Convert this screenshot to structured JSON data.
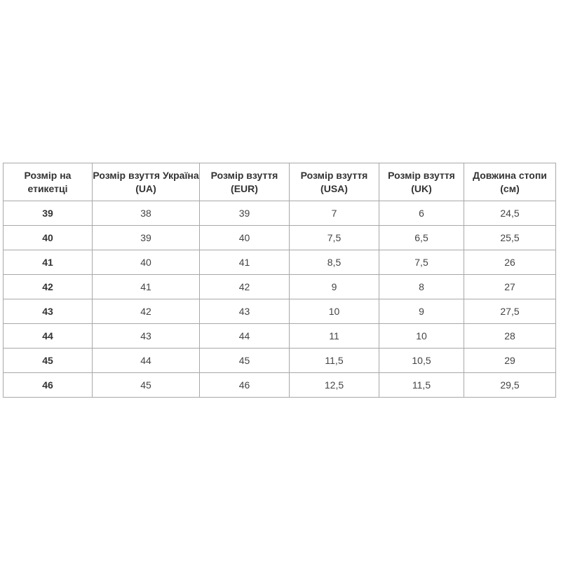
{
  "headers": [
    "Розмір на етикетці",
    "Розмір взуття Україна (UA)",
    "Розмір взуття (EUR)",
    "Розмір взуття (USA)",
    "Розмір взуття (UK)",
    "Довжина стопи (см)"
  ],
  "rows": [
    [
      "39",
      "38",
      "39",
      "7",
      "6",
      "24,5"
    ],
    [
      "40",
      "39",
      "40",
      "7,5",
      "6,5",
      "25,5"
    ],
    [
      "41",
      "40",
      "41",
      "8,5",
      "7,5",
      "26"
    ],
    [
      "42",
      "41",
      "42",
      "9",
      "8",
      "27"
    ],
    [
      "43",
      "42",
      "43",
      "10",
      "9",
      "27,5"
    ],
    [
      "44",
      "43",
      "44",
      "11",
      "10",
      "28"
    ],
    [
      "45",
      "44",
      "45",
      "11,5",
      "10,5",
      "29"
    ],
    [
      "46",
      "45",
      "46",
      "12,5",
      "11,5",
      "29,5"
    ]
  ]
}
